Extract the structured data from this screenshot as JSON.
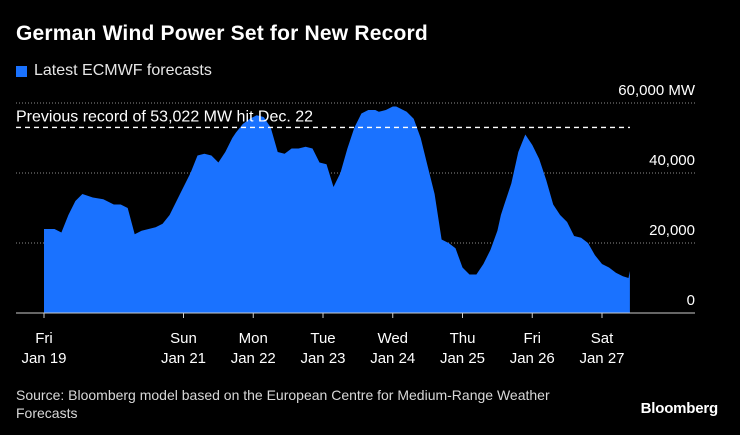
{
  "title": "German Wind Power Set for New Record",
  "legend": {
    "label": "Latest ECMWF forecasts"
  },
  "colors": {
    "series": "#1a72ff",
    "background": "#000000",
    "grid": "#8c8c8c",
    "record_line": "#ffffff",
    "text": "#ffffff"
  },
  "source": "Source: Bloomberg model based on the European Centre for Medium-Range Weather Forecasts",
  "logo": "Bloomberg",
  "chart_data": {
    "type": "area",
    "title": "German Wind Power Set for New Record",
    "xlabel": "",
    "ylabel": "MW",
    "ylim": [
      0,
      60000
    ],
    "xlim": [
      0,
      9.5
    ],
    "yticks": [
      {
        "value": 0,
        "label": "0"
      },
      {
        "value": 20000,
        "label": "20,000"
      },
      {
        "value": 40000,
        "label": "40,000"
      },
      {
        "value": 60000,
        "label": "60,000 MW"
      }
    ],
    "xticks": [
      {
        "x": 0,
        "day": "Fri",
        "date": "Jan 19"
      },
      {
        "x": 2,
        "day": "Sun",
        "date": "Jan 21"
      },
      {
        "x": 3,
        "day": "Mon",
        "date": "Jan 22"
      },
      {
        "x": 4,
        "day": "Tue",
        "date": "Jan 23"
      },
      {
        "x": 5,
        "day": "Wed",
        "date": "Jan 24"
      },
      {
        "x": 6,
        "day": "Thu",
        "date": "Jan 25"
      },
      {
        "x": 7,
        "day": "Fri",
        "date": "Jan 26"
      },
      {
        "x": 8,
        "day": "Sat",
        "date": "Jan 27"
      }
    ],
    "grid": true,
    "annotation": {
      "text": "Previous record of 53,022 MW hit Dec. 22",
      "value": 53022
    },
    "series": [
      {
        "name": "Latest ECMWF forecasts",
        "x": [
          0,
          0.15,
          0.25,
          0.35,
          0.45,
          0.55,
          0.7,
          0.85,
          1.0,
          1.1,
          1.2,
          1.3,
          1.4,
          1.5,
          1.6,
          1.7,
          1.8,
          1.95,
          2.1,
          2.2,
          2.3,
          2.4,
          2.5,
          2.6,
          2.7,
          2.75,
          2.85,
          2.95,
          3.05,
          3.15,
          3.25,
          3.35,
          3.45,
          3.55,
          3.65,
          3.75,
          3.85,
          3.95,
          4.05,
          4.15,
          4.25,
          4.35,
          4.45,
          4.55,
          4.65,
          4.75,
          4.8,
          4.9,
          5.0,
          5.05,
          5.1,
          5.2,
          5.3,
          5.4,
          5.5,
          5.6,
          5.7,
          5.8,
          5.9,
          6.0,
          6.1,
          6.2,
          6.3,
          6.4,
          6.5,
          6.55,
          6.6,
          6.7,
          6.8,
          6.9,
          7.0,
          7.1,
          7.2,
          7.3,
          7.4,
          7.5,
          7.6,
          7.7,
          7.8,
          7.9,
          8.0,
          8.1,
          8.2,
          8.3,
          8.38,
          8.4
        ],
        "values": [
          24000,
          24000,
          23000,
          28000,
          32000,
          34000,
          33000,
          32500,
          31000,
          31000,
          30000,
          22500,
          23500,
          24000,
          24500,
          25500,
          28000,
          34000,
          40000,
          45000,
          45500,
          45000,
          43000,
          46000,
          50000,
          51500,
          54000,
          55500,
          56500,
          56000,
          53000,
          46000,
          45500,
          47000,
          47000,
          47500,
          47000,
          43000,
          42500,
          36000,
          40000,
          47000,
          53000,
          57000,
          58000,
          58000,
          57500,
          58000,
          59000,
          59000,
          58500,
          57500,
          55500,
          50000,
          42000,
          34000,
          21000,
          20000,
          18500,
          13000,
          11000,
          11000,
          14000,
          18000,
          23500,
          28000,
          31000,
          37000,
          46000,
          51000,
          48000,
          44000,
          38000,
          31000,
          28000,
          26000,
          22000,
          21500,
          20000,
          16500,
          14000,
          13000,
          11500,
          10500,
          10000,
          12000
        ]
      }
    ]
  }
}
